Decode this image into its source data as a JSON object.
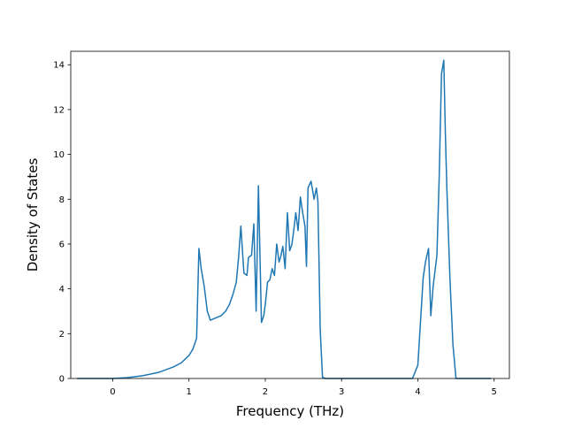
{
  "chart_data": {
    "type": "line",
    "title": "",
    "xlabel": "Frequency (THz)",
    "ylabel": "Density of States",
    "xlim": [
      -0.55,
      5.2
    ],
    "ylim": [
      0,
      14.6
    ],
    "xticks": [
      0,
      1,
      2,
      3,
      4,
      5
    ],
    "yticks": [
      0,
      2,
      4,
      6,
      8,
      10,
      12,
      14
    ],
    "grid": false,
    "line_color": "#1f77b4",
    "series": [
      {
        "x": [
          -0.46,
          0.0,
          0.2,
          0.4,
          0.6,
          0.8,
          0.9,
          1.0,
          1.05,
          1.1,
          1.13,
          1.16,
          1.2,
          1.24,
          1.28,
          1.35,
          1.42,
          1.48,
          1.53,
          1.58,
          1.62,
          1.65,
          1.68,
          1.72,
          1.76,
          1.78,
          1.82,
          1.85,
          1.88,
          1.91,
          1.95,
          1.98,
          2.0,
          2.03,
          2.06,
          2.09,
          2.12,
          2.15,
          2.18,
          2.2,
          2.23,
          2.26,
          2.29,
          2.32,
          2.35,
          2.38,
          2.4,
          2.43,
          2.46,
          2.49,
          2.52,
          2.54,
          2.56,
          2.6,
          2.64,
          2.67,
          2.69,
          2.72,
          2.75,
          2.79,
          2.85,
          3.0,
          3.5,
          3.93,
          4.0,
          4.07,
          4.1,
          4.14,
          4.17,
          4.2,
          4.25,
          4.28,
          4.31,
          4.34,
          4.36,
          4.38,
          4.42,
          4.46,
          4.5,
          4.7,
          4.95
        ],
        "y": [
          0.0,
          0.0,
          0.04,
          0.13,
          0.27,
          0.52,
          0.7,
          1.03,
          1.3,
          1.8,
          5.8,
          4.9,
          4.1,
          3.0,
          2.6,
          2.7,
          2.8,
          3.0,
          3.3,
          3.8,
          4.3,
          5.4,
          6.8,
          4.7,
          4.6,
          5.4,
          5.5,
          6.9,
          3.0,
          8.6,
          2.5,
          2.8,
          3.3,
          4.3,
          4.4,
          4.9,
          4.6,
          6.0,
          5.2,
          5.4,
          5.9,
          4.9,
          7.4,
          5.7,
          6.0,
          6.8,
          7.4,
          6.6,
          8.1,
          7.4,
          6.8,
          5.0,
          8.5,
          8.8,
          8.0,
          8.5,
          7.9,
          2.2,
          0.05,
          0.0,
          0.0,
          0.0,
          0.0,
          0.0,
          0.6,
          4.5,
          5.2,
          5.8,
          2.8,
          4.1,
          5.5,
          9.0,
          13.6,
          14.2,
          11.0,
          8.5,
          4.5,
          1.5,
          0.0,
          0.0,
          0.0
        ]
      }
    ]
  }
}
